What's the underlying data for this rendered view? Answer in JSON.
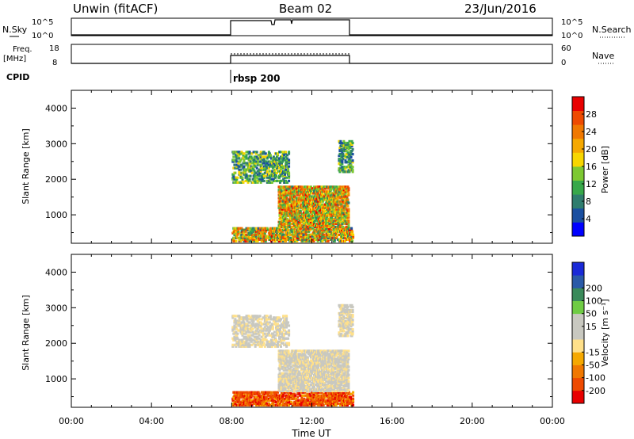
{
  "header": {
    "station": "Unwin (fitACF)",
    "beam": "Beam 02",
    "date": "23/Jun/2016"
  },
  "strip_nsky": {
    "left_label": "N.Sky",
    "right_label": "N.Search",
    "left_ticks": [
      "10^5",
      "10^0"
    ],
    "right_ticks": [
      "10^5",
      "10^0"
    ]
  },
  "strip_freq": {
    "left_label_1": "Freq.",
    "left_label_2": "[MHz]",
    "right_label": "Nave",
    "left_ticks": [
      "18",
      "8"
    ],
    "right_ticks": [
      "60",
      "0"
    ]
  },
  "cpid": {
    "label": "CPID",
    "program": "rbsp 200"
  },
  "colors": {
    "power": [
      "#0000ff",
      "#1a4fa0",
      "#2f7d6e",
      "#38a84a",
      "#7dc832",
      "#f7d600",
      "#f5a800",
      "#f07800",
      "#ee4a00",
      "#e80000"
    ],
    "velocity": [
      "#e80000",
      "#ee4a00",
      "#f07800",
      "#f5a800",
      "#ffe08a",
      "#c8c8c0",
      "#c8c8c0",
      "#6fcc44",
      "#3a8a5a",
      "#2a5aa8",
      "#1a2ad8"
    ]
  },
  "chart_data": [
    {
      "type": "heatmap",
      "name": "power-panel",
      "ylabel": "Slant Range [km]",
      "y_ticks": [
        1000,
        2000,
        3000,
        4000
      ],
      "ylim": [
        200,
        4500
      ],
      "xlim": [
        0,
        24
      ],
      "x_ticks": [
        0,
        4,
        8,
        12,
        16,
        20,
        24
      ],
      "colorbar": {
        "label": "Power [dB]",
        "ticks": [
          "4",
          "8",
          "12",
          "16",
          "20",
          "24",
          "28"
        ],
        "range": [
          0,
          32
        ]
      },
      "regions": [
        {
          "t0": 8.0,
          "t1": 14.0,
          "r0": 250,
          "r1": 650,
          "density": 0.55,
          "vmin": 6,
          "vmax": 30
        },
        {
          "t0": 8.0,
          "t1": 10.8,
          "r0": 1900,
          "r1": 2800,
          "density": 0.35,
          "vmin": 4,
          "vmax": 18
        },
        {
          "t0": 10.3,
          "t1": 13.8,
          "r0": 650,
          "r1": 1800,
          "density": 0.6,
          "vmin": 8,
          "vmax": 30
        },
        {
          "t0": 13.3,
          "t1": 14.0,
          "r0": 2200,
          "r1": 3100,
          "density": 0.45,
          "vmin": 4,
          "vmax": 18
        }
      ]
    },
    {
      "type": "heatmap",
      "name": "velocity-panel",
      "ylabel": "Slant Range [km]",
      "y_ticks": [
        1000,
        2000,
        3000,
        4000
      ],
      "ylim": [
        200,
        4500
      ],
      "xlim": [
        0,
        24
      ],
      "xlabel": "Time UT",
      "x_ticks": [
        0,
        4,
        8,
        12,
        16,
        20,
        24
      ],
      "x_ticklabels": [
        "00:00",
        "04:00",
        "08:00",
        "12:00",
        "16:00",
        "20:00",
        "00:00"
      ],
      "colorbar": {
        "label": "Velocity [m s⁻¹]",
        "ticks": [
          "-200",
          "-100",
          "-50",
          "-15",
          "15",
          "50",
          "100",
          "200"
        ]
      },
      "regions": [
        {
          "t0": 8.0,
          "t1": 14.0,
          "r0": 250,
          "r1": 650,
          "density": 0.55,
          "vmin": -250,
          "vmax": -20
        },
        {
          "t0": 8.0,
          "t1": 10.8,
          "r0": 1900,
          "r1": 2800,
          "density": 0.35,
          "vmin": -15,
          "vmax": 15
        },
        {
          "t0": 10.3,
          "t1": 13.8,
          "r0": 650,
          "r1": 1800,
          "density": 0.6,
          "vmin": -15,
          "vmax": 15
        },
        {
          "t0": 13.3,
          "t1": 14.0,
          "r0": 2200,
          "r1": 3100,
          "density": 0.45,
          "vmin": -15,
          "vmax": 15
        }
      ]
    }
  ]
}
